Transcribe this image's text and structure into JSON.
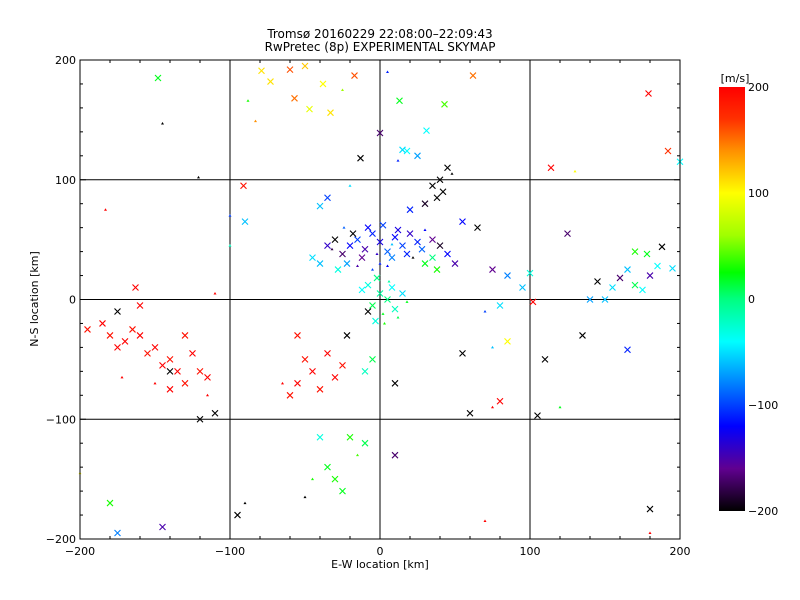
{
  "chart_data": {
    "type": "scatter",
    "title": "Tromsø 20160229 22:08:00–22:09:43",
    "subtitle": "RwPretec (8p) EXPERIMENTAL SKYMAP",
    "xlabel": "E-W location [km]",
    "ylabel": "N-S location [km]",
    "xlim": [
      -200,
      200
    ],
    "ylim": [
      -200,
      200
    ],
    "xticks": [
      "−200",
      "−100",
      "0",
      "100",
      "200"
    ],
    "yticks": [
      "−200",
      "−100",
      "0",
      "100",
      "200"
    ],
    "grid": true,
    "colorbar": {
      "label": "[m/s]",
      "range": [
        -200,
        200
      ],
      "ticks": [
        "200",
        "100",
        "0",
        "−100",
        "−200"
      ],
      "stops": [
        {
          "v": 200,
          "c": "#ff0000"
        },
        {
          "v": 170,
          "c": "#ff3000"
        },
        {
          "v": 140,
          "c": "#ff9000"
        },
        {
          "v": 100,
          "c": "#ffff00"
        },
        {
          "v": 60,
          "c": "#a0ff00"
        },
        {
          "v": 25,
          "c": "#00ff00"
        },
        {
          "v": 0,
          "c": "#00ff80"
        },
        {
          "v": -40,
          "c": "#00ffff"
        },
        {
          "v": -80,
          "c": "#0080ff"
        },
        {
          "v": -120,
          "c": "#0000ff"
        },
        {
          "v": -160,
          "c": "#600090"
        },
        {
          "v": -200,
          "c": "#000000"
        }
      ]
    },
    "points_format": [
      "x_km",
      "y_km",
      "velocity_m_s",
      "marker"
    ],
    "points": [
      [
        -148,
        185,
        20,
        "x"
      ],
      [
        -73,
        182,
        110,
        "x"
      ],
      [
        -57,
        168,
        150,
        "x"
      ],
      [
        -38,
        180,
        100,
        "x"
      ],
      [
        -79,
        191,
        110,
        "x"
      ],
      [
        -88,
        166,
        30,
        "dot"
      ],
      [
        -47,
        159,
        90,
        "x"
      ],
      [
        -33,
        156,
        110,
        "x"
      ],
      [
        -60,
        192,
        160,
        "x"
      ],
      [
        -83,
        149,
        140,
        "dot"
      ],
      [
        -17,
        187,
        160,
        "x"
      ],
      [
        13,
        166,
        20,
        "x"
      ],
      [
        62,
        187,
        150,
        "x"
      ],
      [
        43,
        163,
        40,
        "x"
      ],
      [
        -13,
        118,
        -200,
        "x"
      ],
      [
        0,
        139,
        -170,
        "x"
      ],
      [
        31,
        141,
        -40,
        "x"
      ],
      [
        18,
        124,
        -40,
        "x"
      ],
      [
        12,
        116,
        -110,
        "dot"
      ],
      [
        179,
        172,
        200,
        "x"
      ],
      [
        130,
        107,
        100,
        "dot"
      ],
      [
        114,
        110,
        200,
        "x"
      ],
      [
        192,
        124,
        170,
        "x"
      ],
      [
        200,
        115,
        -40,
        "x"
      ],
      [
        -91,
        95,
        190,
        "x"
      ],
      [
        -121,
        102,
        -200,
        "dot"
      ],
      [
        -145,
        147,
        -200,
        "dot"
      ],
      [
        -50,
        195,
        120,
        "x"
      ],
      [
        -25,
        175,
        60,
        "dot"
      ],
      [
        5,
        190,
        -110,
        "dot"
      ],
      [
        -20,
        45,
        -120,
        "x"
      ],
      [
        -15,
        50,
        -100,
        "x"
      ],
      [
        -10,
        42,
        -150,
        "x"
      ],
      [
        -5,
        55,
        -110,
        "x"
      ],
      [
        0,
        48,
        -130,
        "x"
      ],
      [
        5,
        40,
        -90,
        "x"
      ],
      [
        10,
        52,
        -120,
        "x"
      ],
      [
        15,
        45,
        -100,
        "x"
      ],
      [
        20,
        55,
        -140,
        "x"
      ],
      [
        25,
        48,
        -110,
        "x"
      ],
      [
        -25,
        38,
        -170,
        "x"
      ],
      [
        -18,
        55,
        -200,
        "x"
      ],
      [
        -12,
        35,
        -160,
        "x"
      ],
      [
        -8,
        60,
        -120,
        "x"
      ],
      [
        2,
        62,
        -100,
        "x"
      ],
      [
        8,
        35,
        -80,
        "x"
      ],
      [
        12,
        58,
        -130,
        "x"
      ],
      [
        18,
        38,
        -110,
        "x"
      ],
      [
        28,
        42,
        -90,
        "x"
      ],
      [
        35,
        50,
        -160,
        "x"
      ],
      [
        40,
        45,
        -190,
        "x"
      ],
      [
        45,
        38,
        -120,
        "x"
      ],
      [
        50,
        30,
        -150,
        "x"
      ],
      [
        -30,
        50,
        -200,
        "x"
      ],
      [
        -35,
        45,
        -140,
        "x"
      ],
      [
        -40,
        30,
        -60,
        "x"
      ],
      [
        -45,
        35,
        -50,
        "x"
      ],
      [
        -28,
        25,
        -30,
        "x"
      ],
      [
        -22,
        30,
        -70,
        "x"
      ],
      [
        30,
        30,
        20,
        "x"
      ],
      [
        35,
        35,
        0,
        "x"
      ],
      [
        38,
        25,
        30,
        "x"
      ],
      [
        -5,
        25,
        -100,
        "dot"
      ],
      [
        0,
        30,
        -110,
        "dot"
      ],
      [
        5,
        28,
        -120,
        "dot"
      ],
      [
        -15,
        28,
        -150,
        "dot"
      ],
      [
        22,
        35,
        -200,
        "dot"
      ],
      [
        -32,
        42,
        -180,
        "dot"
      ],
      [
        8,
        46,
        -60,
        "dot"
      ],
      [
        -2,
        38,
        -140,
        "dot"
      ],
      [
        30,
        58,
        -120,
        "dot"
      ],
      [
        -24,
        60,
        -90,
        "dot"
      ],
      [
        0,
        5,
        -10,
        "x"
      ],
      [
        5,
        0,
        0,
        "x"
      ],
      [
        -5,
        -5,
        10,
        "x"
      ],
      [
        10,
        -8,
        -20,
        "x"
      ],
      [
        2,
        -12,
        20,
        "dot"
      ],
      [
        8,
        10,
        -40,
        "x"
      ],
      [
        -8,
        12,
        -30,
        "x"
      ],
      [
        12,
        -15,
        10,
        "dot"
      ],
      [
        -2,
        18,
        0,
        "x"
      ],
      [
        15,
        5,
        -50,
        "x"
      ],
      [
        3,
        -20,
        30,
        "dot"
      ],
      [
        -12,
        8,
        -40,
        "x"
      ],
      [
        6,
        15,
        -10,
        "dot"
      ],
      [
        18,
        -2,
        20,
        "dot"
      ],
      [
        -3,
        -18,
        -30,
        "x"
      ],
      [
        -8,
        -10,
        -200,
        "x"
      ],
      [
        35,
        95,
        -200,
        "x"
      ],
      [
        40,
        100,
        -200,
        "x"
      ],
      [
        45,
        110,
        -200,
        "x"
      ],
      [
        38,
        85,
        -200,
        "x"
      ],
      [
        30,
        80,
        -190,
        "x"
      ],
      [
        42,
        90,
        -200,
        "x"
      ],
      [
        48,
        105,
        -200,
        "dot"
      ],
      [
        20,
        75,
        -110,
        "x"
      ],
      [
        25,
        120,
        -70,
        "x"
      ],
      [
        15,
        125,
        -50,
        "x"
      ],
      [
        -40,
        78,
        -60,
        "x"
      ],
      [
        -35,
        85,
        -100,
        "x"
      ],
      [
        -20,
        95,
        -50,
        "dot"
      ],
      [
        55,
        65,
        -120,
        "x"
      ],
      [
        65,
        60,
        -200,
        "x"
      ],
      [
        145,
        15,
        -200,
        "x"
      ],
      [
        155,
        10,
        -50,
        "x"
      ],
      [
        160,
        18,
        -170,
        "x"
      ],
      [
        165,
        25,
        -60,
        "x"
      ],
      [
        170,
        12,
        10,
        "x"
      ],
      [
        175,
        8,
        -40,
        "x"
      ],
      [
        180,
        20,
        -150,
        "x"
      ],
      [
        185,
        28,
        -40,
        "x"
      ],
      [
        178,
        38,
        20,
        "x"
      ],
      [
        188,
        44,
        -200,
        "x"
      ],
      [
        170,
        40,
        30,
        "x"
      ],
      [
        195,
        26,
        -50,
        "x"
      ],
      [
        150,
        0,
        -60,
        "x"
      ],
      [
        140,
        0,
        -70,
        "x"
      ],
      [
        165,
        -42,
        -110,
        "x"
      ],
      [
        135,
        -30,
        -200,
        "x"
      ],
      [
        95,
        10,
        -60,
        "x"
      ],
      [
        100,
        22,
        -30,
        "x"
      ],
      [
        85,
        20,
        -80,
        "x"
      ],
      [
        75,
        25,
        -160,
        "x"
      ],
      [
        80,
        -5,
        -50,
        "x"
      ],
      [
        70,
        -10,
        -100,
        "dot"
      ],
      [
        102,
        -2,
        200,
        "x"
      ],
      [
        110,
        -50,
        -200,
        "x"
      ],
      [
        105,
        -97,
        -200,
        "x"
      ],
      [
        120,
        -90,
        20,
        "dot"
      ],
      [
        125,
        55,
        -170,
        "x"
      ],
      [
        -195,
        -25,
        190,
        "x"
      ],
      [
        -185,
        -20,
        200,
        "x"
      ],
      [
        -180,
        -30,
        190,
        "x"
      ],
      [
        -175,
        -40,
        200,
        "x"
      ],
      [
        -170,
        -35,
        200,
        "x"
      ],
      [
        -165,
        -25,
        190,
        "x"
      ],
      [
        -160,
        -30,
        200,
        "x"
      ],
      [
        -155,
        -45,
        190,
        "x"
      ],
      [
        -150,
        -40,
        200,
        "x"
      ],
      [
        -145,
        -55,
        200,
        "x"
      ],
      [
        -140,
        -50,
        190,
        "x"
      ],
      [
        -135,
        -60,
        200,
        "x"
      ],
      [
        -130,
        -70,
        190,
        "x"
      ],
      [
        -125,
        -45,
        200,
        "x"
      ],
      [
        -120,
        -60,
        190,
        "x"
      ],
      [
        -115,
        -65,
        200,
        "x"
      ],
      [
        -130,
        -30,
        190,
        "x"
      ],
      [
        -160,
        -5,
        200,
        "x"
      ],
      [
        -163,
        10,
        200,
        "x"
      ],
      [
        -175,
        -10,
        -200,
        "x"
      ],
      [
        -140,
        -75,
        200,
        "x"
      ],
      [
        -172,
        -65,
        200,
        "dot"
      ],
      [
        -150,
        -70,
        200,
        "dot"
      ],
      [
        -60,
        -80,
        190,
        "x"
      ],
      [
        -55,
        -70,
        200,
        "x"
      ],
      [
        -50,
        -50,
        190,
        "x"
      ],
      [
        -45,
        -60,
        200,
        "x"
      ],
      [
        -40,
        -75,
        190,
        "x"
      ],
      [
        -35,
        -45,
        200,
        "x"
      ],
      [
        -30,
        -65,
        200,
        "x"
      ],
      [
        -25,
        -55,
        190,
        "x"
      ],
      [
        -22,
        -30,
        -200,
        "x"
      ],
      [
        -10,
        -60,
        -20,
        "x"
      ],
      [
        -5,
        -50,
        10,
        "x"
      ],
      [
        10,
        -70,
        -200,
        "x"
      ],
      [
        -55,
        -30,
        190,
        "x"
      ],
      [
        -65,
        -70,
        200,
        "dot"
      ],
      [
        -40,
        -115,
        -30,
        "x"
      ],
      [
        -20,
        -115,
        30,
        "x"
      ],
      [
        -10,
        -120,
        10,
        "x"
      ],
      [
        -35,
        -140,
        20,
        "x"
      ],
      [
        -30,
        -150,
        30,
        "x"
      ],
      [
        -25,
        -160,
        20,
        "x"
      ],
      [
        -45,
        -150,
        30,
        "dot"
      ],
      [
        -15,
        -130,
        40,
        "dot"
      ],
      [
        10,
        -130,
        -170,
        "x"
      ],
      [
        -50,
        -165,
        -200,
        "dot"
      ],
      [
        -95,
        -180,
        -200,
        "x"
      ],
      [
        -90,
        -170,
        -200,
        "dot"
      ],
      [
        -145,
        -190,
        -150,
        "x"
      ],
      [
        -175,
        -195,
        -80,
        "x"
      ],
      [
        -180,
        -170,
        30,
        "x"
      ],
      [
        -200,
        -145,
        100,
        "dot"
      ],
      [
        -120,
        -100,
        -200,
        "x"
      ],
      [
        -110,
        -95,
        -200,
        "x"
      ],
      [
        -140,
        -60,
        -200,
        "x"
      ],
      [
        -115,
        -80,
        200,
        "dot"
      ],
      [
        60,
        -95,
        -200,
        "x"
      ],
      [
        80,
        -85,
        200,
        "x"
      ],
      [
        75,
        -90,
        200,
        "dot"
      ],
      [
        55,
        -45,
        -200,
        "x"
      ],
      [
        85,
        -35,
        100,
        "x"
      ],
      [
        75,
        -40,
        -60,
        "dot"
      ],
      [
        180,
        -175,
        -200,
        "x"
      ],
      [
        180,
        -195,
        200,
        "dot"
      ],
      [
        70,
        -185,
        200,
        "dot"
      ],
      [
        -183,
        75,
        200,
        "dot"
      ],
      [
        -100,
        45,
        -20,
        "dot"
      ],
      [
        -90,
        65,
        -60,
        "x"
      ],
      [
        -100,
        70,
        -100,
        "dot"
      ],
      [
        -110,
        5,
        200,
        "dot"
      ]
    ]
  }
}
